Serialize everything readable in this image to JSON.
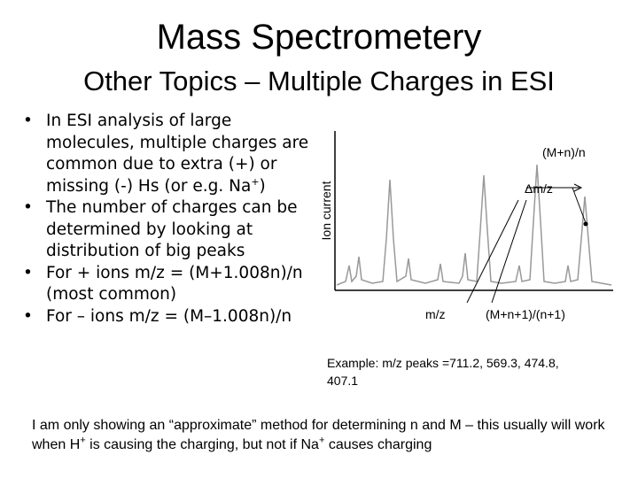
{
  "header": {
    "title": "Mass Spectrometery",
    "subtitle": "Other Topics – Multiple Charges in ESI"
  },
  "bullets": [
    {
      "parts": [
        "In ESI analysis of large molecules, multiple charges are common due to extra (+) or missing (-) Hs (or e.g. Na",
        "+",
        ")"
      ]
    },
    {
      "parts": [
        "The number of charges can be determined by looking at distribution of big peaks"
      ]
    },
    {
      "parts": [
        "For + ions m/z = (M+1.008n)/n (most common)"
      ]
    },
    {
      "parts": [
        "For – ions m/z = (M–1.008n)/n"
      ]
    }
  ],
  "figure": {
    "y_label": "Ion current",
    "peak_label": "(M+n)/n",
    "delta_label": "Δm/z",
    "mz_label": "m/z",
    "next_label": "(M+n+1)/(n+1)",
    "example": "Example: m/z peaks =711.2, 569.3, 474.8, 407.1"
  },
  "footer": {
    "parts": [
      "I am only showing an “approximate” method for determining n and M – this usually will work when H",
      "+",
      " is causing the charging, but not if Na",
      "+",
      " causes charging"
    ]
  }
}
